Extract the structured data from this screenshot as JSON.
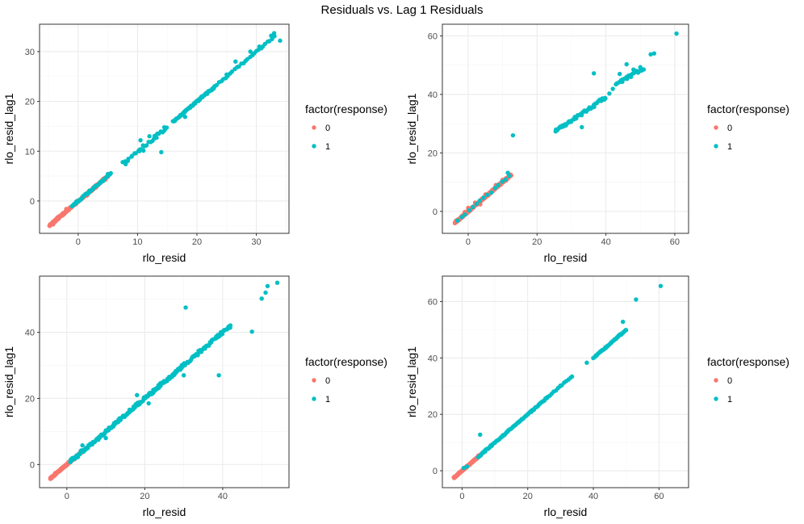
{
  "figure": {
    "title": "Residuals vs. Lag 1 Residuals"
  },
  "colors": {
    "response_0": "#F8766D",
    "response_1": "#00BFC4",
    "grid_major": "#ebebeb",
    "grid_minor": "#f5f5f5",
    "panel_border": "#333333",
    "tick_text": "#4d4d4d"
  },
  "chart_data": [
    {
      "type": "scatter",
      "title": "",
      "xlabel": "rlo_resid",
      "ylabel": "rlo_resid_lag1",
      "xlim": [
        -6.5,
        35.5
      ],
      "ylim": [
        -6.5,
        35.5
      ],
      "x_ticks": [
        0,
        10,
        20,
        30
      ],
      "y_ticks": [
        0,
        10,
        20,
        30
      ],
      "grid": true,
      "legend": {
        "title": "factor(response)",
        "placement": "right",
        "entries": [
          "0",
          "1"
        ]
      },
      "series": [
        {
          "name": "0",
          "color": "#F8766D",
          "segments": [
            [
              -4.8,
              -4.9,
              5.0,
              5.0,
              0.35,
              180,
              11
            ]
          ],
          "points": [
            [
              -4.2,
              -4.7
            ],
            [
              -3.5,
              -3.3
            ],
            [
              -2.0,
              -1.6
            ],
            [
              0.4,
              0.3
            ],
            [
              1.5,
              1.1
            ],
            [
              3.0,
              2.7
            ],
            [
              4.6,
              4.3
            ]
          ]
        },
        {
          "name": "1",
          "color": "#00BFC4",
          "segments": [
            [
              -1.0,
              -1.0,
              5.5,
              5.5,
              0.35,
              45,
              12
            ],
            [
              8.0,
              8.0,
              15.0,
              15.0,
              0.7,
              25,
              13
            ],
            [
              16.0,
              16.0,
              23.0,
              23.0,
              0.4,
              55,
              14
            ],
            [
              23.0,
              23.0,
              33.0,
              33.0,
              0.35,
              28,
              15
            ]
          ],
          "points": [
            [
              5.0,
              5.4
            ],
            [
              7.5,
              7.8
            ],
            [
              8.0,
              7.4
            ],
            [
              10.3,
              10.0
            ],
            [
              10.5,
              12.2
            ],
            [
              11.0,
              10.1
            ],
            [
              12.0,
              13.0
            ],
            [
              13.2,
              12.7
            ],
            [
              14.0,
              9.8
            ],
            [
              14.5,
              14.8
            ],
            [
              18.0,
              16.9
            ],
            [
              19.5,
              19.6
            ],
            [
              21.0,
              21.1
            ],
            [
              25.0,
              25.4
            ],
            [
              26.5,
              28.0
            ],
            [
              29.0,
              30.0
            ],
            [
              30.5,
              31.0
            ],
            [
              32.5,
              33.2
            ],
            [
              33.0,
              33.7
            ],
            [
              34.0,
              32.2
            ]
          ]
        }
      ]
    },
    {
      "type": "scatter",
      "title": "",
      "xlabel": "rlo_resid",
      "ylabel": "rlo_resid_lag1",
      "xlim": [
        -7.5,
        64
      ],
      "ylim": [
        -7.5,
        64
      ],
      "x_ticks": [
        0,
        20,
        40,
        60
      ],
      "y_ticks": [
        0,
        20,
        40,
        60
      ],
      "grid": true,
      "legend": {
        "title": "factor(response)",
        "placement": "right",
        "entries": [
          "0",
          "1"
        ]
      },
      "series": [
        {
          "name": "0",
          "color": "#F8766D",
          "segments": [
            [
              -3.8,
              -3.8,
              12.5,
              12.5,
              0.7,
              200,
              21
            ]
          ],
          "points": [
            [
              -3.5,
              -3.2
            ],
            [
              -1.0,
              -0.2
            ],
            [
              0.0,
              1.2
            ],
            [
              2.0,
              3.0
            ],
            [
              3.5,
              2.4
            ],
            [
              5.0,
              5.8
            ],
            [
              8.0,
              9.0
            ],
            [
              10.0,
              10.8
            ],
            [
              12.0,
              12.5
            ]
          ]
        },
        {
          "name": "1",
          "color": "#00BFC4",
          "segments": [
            [
              -3.0,
              -3.0,
              12.0,
              12.0,
              0.6,
              15,
              22
            ],
            [
              25.5,
              27.5,
              40.0,
              39.0,
              1.0,
              45,
              23
            ],
            [
              43.0,
              43.5,
              51.0,
              49.0,
              1.0,
              25,
              24
            ]
          ],
          "points": [
            [
              11.5,
              13.2
            ],
            [
              13.0,
              26.0
            ],
            [
              25.5,
              28.0
            ],
            [
              33.0,
              28.8
            ],
            [
              36.0,
              35.5
            ],
            [
              36.5,
              47.2
            ],
            [
              41.0,
              40.3
            ],
            [
              42.0,
              41.9
            ],
            [
              44.0,
              47.0
            ],
            [
              46.0,
              50.3
            ],
            [
              48.0,
              48.5
            ],
            [
              50.0,
              49.3
            ],
            [
              53.0,
              53.7
            ],
            [
              54.0,
              54.0
            ],
            [
              60.5,
              60.8
            ]
          ]
        }
      ]
    },
    {
      "type": "scatter",
      "title": "",
      "xlabel": "rlo_resid",
      "ylabel": "rlo_resid_lag1",
      "xlim": [
        -7,
        57
      ],
      "ylim": [
        -7,
        57
      ],
      "x_ticks": [
        0,
        20,
        40
      ],
      "y_ticks": [
        0,
        20,
        40
      ],
      "grid": true,
      "legend": {
        "title": "factor(response)",
        "placement": "right",
        "entries": [
          "0",
          "1"
        ]
      },
      "series": [
        {
          "name": "0",
          "color": "#F8766D",
          "segments": [
            [
              -4.2,
              -4.2,
              4.5,
              4.5,
              0.35,
              180,
              31
            ]
          ],
          "points": [
            [
              -3.8,
              -4.0
            ],
            [
              -3.0,
              -2.6
            ],
            [
              -1.5,
              -1.2
            ],
            [
              0.5,
              0.8
            ],
            [
              2.0,
              1.6
            ],
            [
              3.5,
              3.9
            ]
          ]
        },
        {
          "name": "1",
          "color": "#00BFC4",
          "segments": [
            [
              1.0,
              1.0,
              12.0,
              12.0,
              0.9,
              60,
              32
            ],
            [
              12.0,
              12.0,
              30.0,
              30.0,
              0.9,
              100,
              33
            ],
            [
              30.0,
              30.0,
              42.0,
              42.0,
              0.9,
              50,
              34
            ]
          ],
          "points": [
            [
              1.0,
              1.5
            ],
            [
              4.0,
              5.8
            ],
            [
              10.0,
              8.0
            ],
            [
              16.0,
              15.8
            ],
            [
              18.0,
              21.0
            ],
            [
              21.0,
              18.5
            ],
            [
              24.0,
              24.6
            ],
            [
              30.0,
              27.0
            ],
            [
              30.5,
              47.5
            ],
            [
              36.0,
              35.9
            ],
            [
              39.0,
              27.0
            ],
            [
              39.5,
              40.0
            ],
            [
              41.5,
              41.7
            ],
            [
              47.5,
              40.2
            ],
            [
              50.0,
              50.2
            ],
            [
              51.0,
              52.0
            ],
            [
              51.5,
              54.0
            ],
            [
              54.0,
              55.0
            ]
          ]
        }
      ]
    },
    {
      "type": "scatter",
      "title": "",
      "xlabel": "rlo_resid",
      "ylabel": "rlo_resid_lag1",
      "xlim": [
        -6,
        69
      ],
      "ylim": [
        -6,
        69
      ],
      "x_ticks": [
        0,
        20,
        40,
        60
      ],
      "y_ticks": [
        0,
        20,
        40,
        60
      ],
      "grid": true,
      "legend": {
        "title": "factor(response)",
        "placement": "right",
        "entries": [
          "0",
          "1"
        ]
      },
      "series": [
        {
          "name": "0",
          "color": "#F8766D",
          "segments": [
            [
              -2.5,
              -2.5,
              5.8,
              5.8,
              0.35,
              170,
              41
            ]
          ],
          "points": [
            [
              -2.2,
              -2.4
            ],
            [
              -1.0,
              -0.8
            ],
            [
              0.5,
              0.9
            ],
            [
              2.0,
              2.1
            ],
            [
              3.5,
              3.3
            ],
            [
              5.0,
              5.4
            ]
          ]
        },
        {
          "name": "1",
          "color": "#00BFC4",
          "segments": [
            [
              5.0,
              5.0,
              12.0,
              12.0,
              0.5,
              25,
              42
            ],
            [
              12.0,
              12.0,
              26.0,
              26.0,
              0.4,
              55,
              43
            ],
            [
              26.0,
              26.0,
              33.0,
              33.0,
              0.3,
              12,
              44
            ],
            [
              40.0,
              40.0,
              50.0,
              50.0,
              0.4,
              40,
              45
            ]
          ],
          "points": [
            [
              0.5,
              1.0
            ],
            [
              1.5,
              1.5
            ],
            [
              5.5,
              12.8
            ],
            [
              7.0,
              7.2
            ],
            [
              8.5,
              8.4
            ],
            [
              30.0,
              30.2
            ],
            [
              33.5,
              33.4
            ],
            [
              38.0,
              38.3
            ],
            [
              49.0,
              52.8
            ],
            [
              53.0,
              60.7
            ],
            [
              60.5,
              65.5
            ]
          ]
        }
      ]
    }
  ]
}
